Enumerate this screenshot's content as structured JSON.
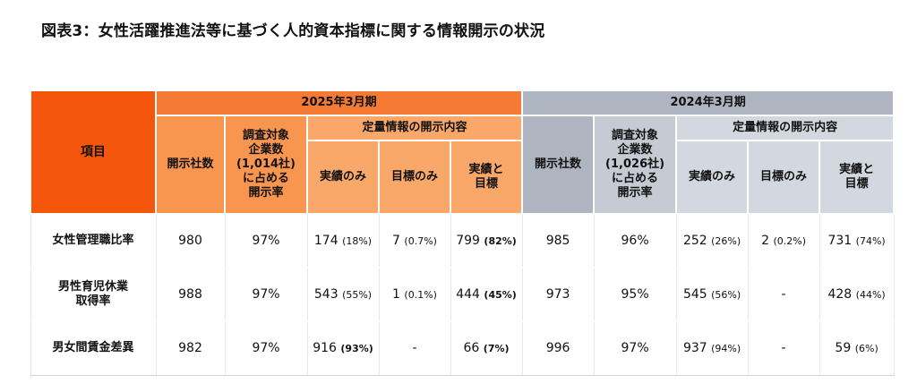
{
  "title": "図表3：女性活躍推進法等に基づく人的資本指標に関する情報開示の状況",
  "header": {
    "item": "項目",
    "period_2025": "2025年3月期",
    "period_2024": "2024年3月期",
    "disclosed_count": "開示社数",
    "rate_2025": [
      "調査対象",
      "企業数",
      "(1,014社)",
      "に占める",
      "開示率"
    ],
    "rate_2024": [
      "調査対象",
      "企業数",
      "(1,026社)",
      "に占める",
      "開示率"
    ],
    "quant_info": "定量情報の開示内容",
    "actual_only": "実績のみ",
    "target_only": "目標のみ",
    "actual_target": [
      "実績と",
      "目標"
    ]
  },
  "rows": [
    {
      "item": [
        "女性管理職比率"
      ],
      "y2025": {
        "count": "980",
        "rate": "97%",
        "actual": "174",
        "actual_pct": "(18%)",
        "actual_bold": false,
        "target": "7",
        "target_pct": "(0.7%)",
        "target_bold": false,
        "both": "799",
        "both_pct": "(82%)",
        "both_bold": true
      },
      "y2024": {
        "count": "985",
        "rate": "96%",
        "actual": "252",
        "actual_pct": "(26%)",
        "actual_bold": false,
        "target": "2",
        "target_pct": "(0.2%)",
        "target_bold": false,
        "both": "731",
        "both_pct": "(74%)",
        "both_bold": false
      }
    },
    {
      "item": [
        "男性育児休業",
        "取得率"
      ],
      "y2025": {
        "count": "988",
        "rate": "97%",
        "actual": "543",
        "actual_pct": "(55%)",
        "actual_bold": false,
        "target": "1",
        "target_pct": "(0.1%)",
        "target_bold": false,
        "both": "444",
        "both_pct": "(45%)",
        "both_bold": true
      },
      "y2024": {
        "count": "973",
        "rate": "95%",
        "actual": "545",
        "actual_pct": "(56%)",
        "actual_bold": false,
        "target": "-",
        "target_pct": "",
        "target_bold": false,
        "both": "428",
        "both_pct": "(44%)",
        "both_bold": false
      }
    },
    {
      "item": [
        "男女間賃金差異"
      ],
      "y2025": {
        "count": "982",
        "rate": "97%",
        "actual": "916",
        "actual_pct": "(93%)",
        "actual_bold": true,
        "target": "-",
        "target_pct": "",
        "target_bold": false,
        "both": "66",
        "both_pct": "(7%)",
        "both_bold": true
      },
      "y2024": {
        "count": "996",
        "rate": "97%",
        "actual": "937",
        "actual_pct": "(94%)",
        "actual_bold": false,
        "target": "-",
        "target_pct": "",
        "target_bold": false,
        "both": "59",
        "both_pct": "(6%)",
        "both_bold": false
      }
    }
  ]
}
